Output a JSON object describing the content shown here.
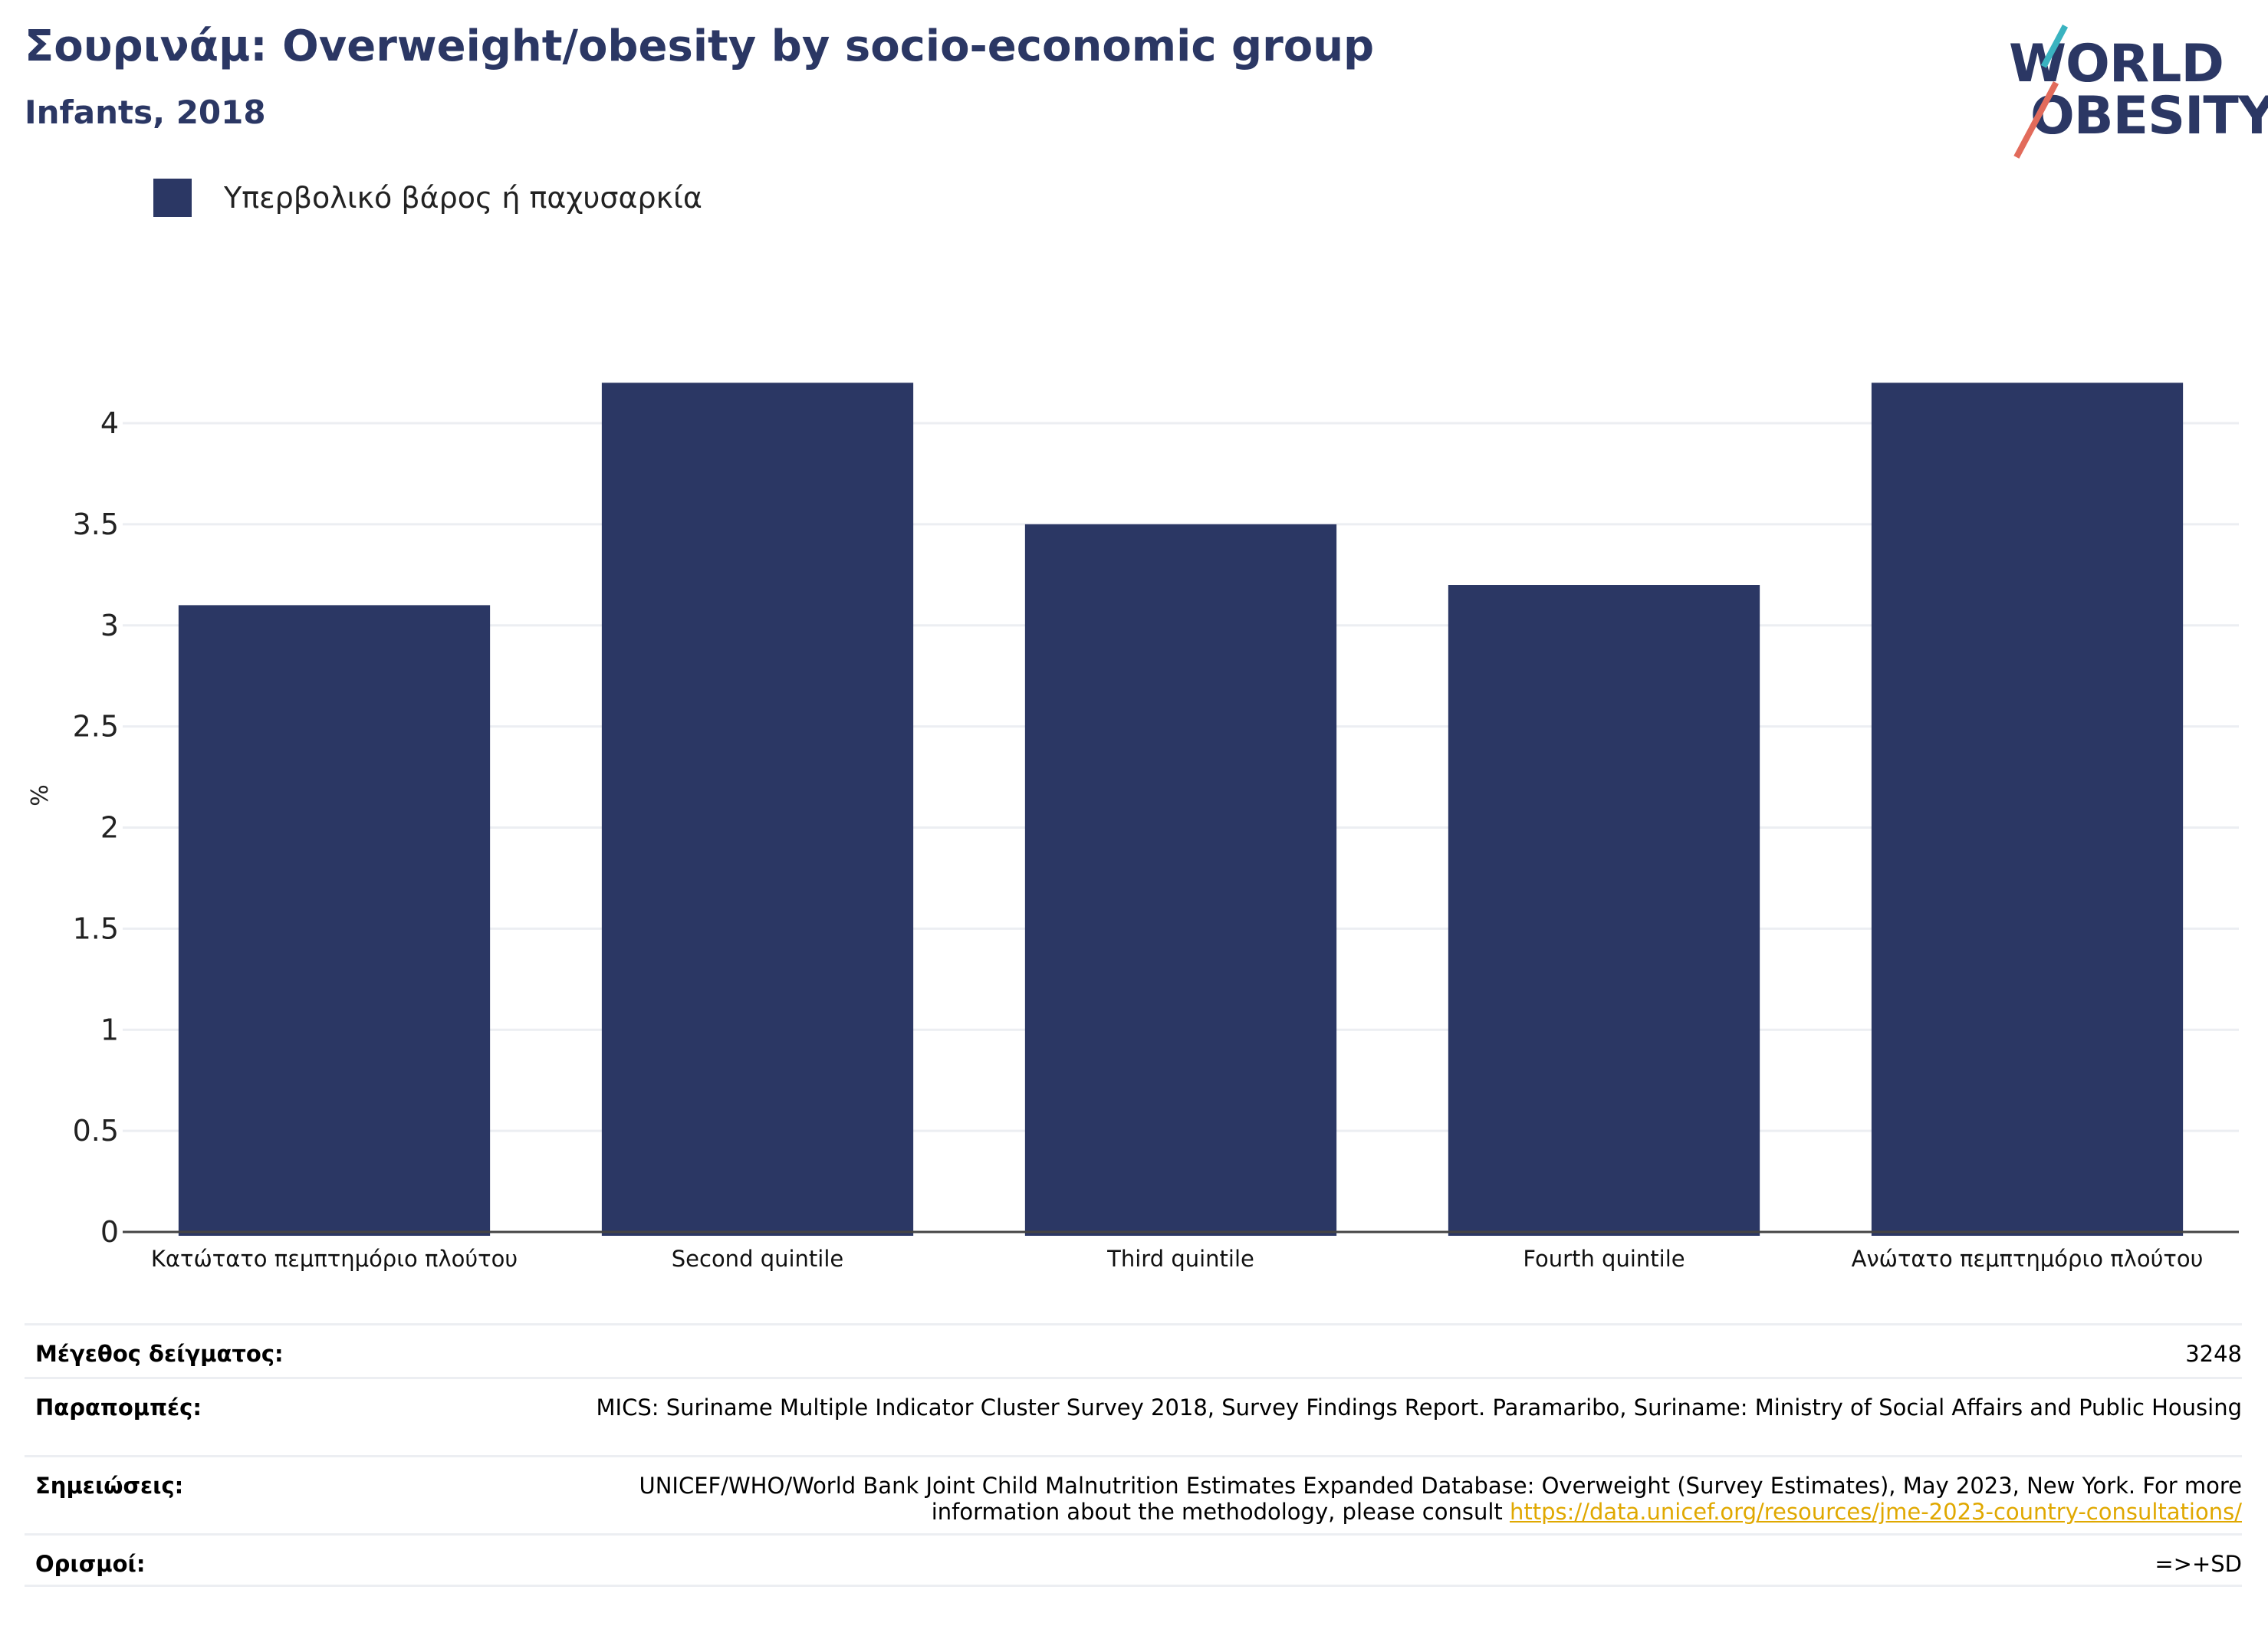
{
  "header": {
    "title": "Σουρινάμ: Overweight/obesity by socio-economic group",
    "subtitle": "Infants, 2018"
  },
  "logo": {
    "line1": "WORLD",
    "line2": "OBESITY"
  },
  "colors": {
    "bar": "#2b3764",
    "title": "#2b3764",
    "grid": "#eceef2",
    "link": "#e0a800"
  },
  "chart_data": {
    "type": "bar",
    "categories": [
      "Κατώτατο πεμπτημόριο πλούτου",
      "Second quintile",
      "Third quintile",
      "Fourth quintile",
      "Ανώτατο πεμπτημόριο πλούτου"
    ],
    "series": [
      {
        "name": "Υπερβολικό βάρος ή παχυσαρκία",
        "values": [
          3.1,
          4.2,
          3.5,
          3.2,
          4.2
        ]
      }
    ],
    "ylabel": "%",
    "ylim": [
      0,
      4.22
    ],
    "yticks": [
      0,
      0.5,
      1,
      1.5,
      2,
      2.5,
      3,
      3.5,
      4
    ],
    "ytick_labels": [
      "0",
      "0.5",
      "1",
      "1.5",
      "2",
      "2.5",
      "3",
      "3.5",
      "4"
    ],
    "grid": true,
    "legend": "top-left"
  },
  "table": {
    "sample_label": "Μέγεθος δείγματος:",
    "sample_value": "3248",
    "refs_label": "Παραπομπές:",
    "refs_value": "MICS: Suriname Multiple Indicator Cluster Survey 2018, Survey Findings Report. Paramaribo, Suriname: Ministry of Social Affairs and Public Housing",
    "notes_label": "Σημειώσεις:",
    "notes_value": "UNICEF/WHO/World Bank Joint Child Malnutrition Estimates Expanded Database: Overweight (Survey Estimates), May 2023, New York. For more information about the methodology, please consult",
    "notes_link": "https://data.unicef.org/resources/jme-2023-country-consultations/",
    "defs_label": "Ορισμοί:",
    "defs_value": "=>+SD"
  }
}
